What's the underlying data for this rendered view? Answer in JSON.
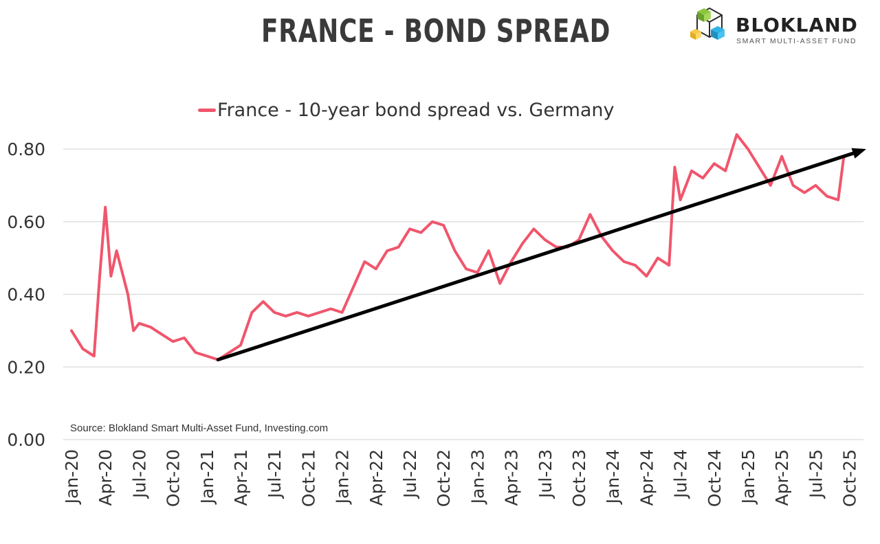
{
  "header": {
    "title": "FRANCE - BOND SPREAD"
  },
  "logo": {
    "name": "BLOKLAND",
    "tagline": "SMART MULTI-ASSET FUND",
    "icon": "cube-cluster-icon"
  },
  "chart_data": {
    "type": "line",
    "title": "FRANCE - BOND SPREAD",
    "source": "Source: Blokland Smart Multi-Asset Fund, Investing.com",
    "legend_position": "top-center",
    "grid": true,
    "ylim": [
      0.0,
      0.8
    ],
    "yticks": [
      "0.00",
      "0.20",
      "0.40",
      "0.60",
      "0.80"
    ],
    "xticks": [
      "Jan-20",
      "Apr-20",
      "Jul-20",
      "Oct-20",
      "Jan-21",
      "Apr-21",
      "Jul-21",
      "Oct-21",
      "Jan-22",
      "Apr-22",
      "Jul-22",
      "Oct-22",
      "Jan-23",
      "Apr-23",
      "Jul-23",
      "Oct-23",
      "Jan-24",
      "Apr-24",
      "Jul-24",
      "Oct-24",
      "Jan-25",
      "Apr-25",
      "Jul-25",
      "Oct-25"
    ],
    "series": [
      {
        "name": "France - 10-year bond spread vs. Germany",
        "color": "#f0566c",
        "points": [
          [
            "Jan-20",
            0.3
          ],
          [
            "Feb-20",
            0.25
          ],
          [
            "Mar-20",
            0.23
          ],
          [
            "Mar-20",
            0.45
          ],
          [
            "Apr-20",
            0.64
          ],
          [
            "Apr-20",
            0.45
          ],
          [
            "May-20",
            0.52
          ],
          [
            "Jun-20",
            0.4
          ],
          [
            "Jun-20",
            0.3
          ],
          [
            "Jul-20",
            0.32
          ],
          [
            "Aug-20",
            0.31
          ],
          [
            "Sep-20",
            0.29
          ],
          [
            "Oct-20",
            0.27
          ],
          [
            "Nov-20",
            0.28
          ],
          [
            "Dec-20",
            0.24
          ],
          [
            "Jan-21",
            0.23
          ],
          [
            "Feb-21",
            0.22
          ],
          [
            "Mar-21",
            0.24
          ],
          [
            "Apr-21",
            0.26
          ],
          [
            "May-21",
            0.35
          ],
          [
            "Jun-21",
            0.38
          ],
          [
            "Jul-21",
            0.35
          ],
          [
            "Aug-21",
            0.34
          ],
          [
            "Sep-21",
            0.35
          ],
          [
            "Oct-21",
            0.34
          ],
          [
            "Nov-21",
            0.35
          ],
          [
            "Dec-21",
            0.36
          ],
          [
            "Jan-22",
            0.35
          ],
          [
            "Feb-22",
            0.42
          ],
          [
            "Mar-22",
            0.49
          ],
          [
            "Apr-22",
            0.47
          ],
          [
            "May-22",
            0.52
          ],
          [
            "Jun-22",
            0.53
          ],
          [
            "Jul-22",
            0.58
          ],
          [
            "Aug-22",
            0.57
          ],
          [
            "Sep-22",
            0.6
          ],
          [
            "Oct-22",
            0.59
          ],
          [
            "Nov-22",
            0.52
          ],
          [
            "Dec-22",
            0.47
          ],
          [
            "Jan-23",
            0.46
          ],
          [
            "Feb-23",
            0.52
          ],
          [
            "Mar-23",
            0.43
          ],
          [
            "Apr-23",
            0.49
          ],
          [
            "May-23",
            0.54
          ],
          [
            "Jun-23",
            0.58
          ],
          [
            "Jul-23",
            0.55
          ],
          [
            "Aug-23",
            0.53
          ],
          [
            "Sep-23",
            0.53
          ],
          [
            "Oct-23",
            0.55
          ],
          [
            "Nov-23",
            0.62
          ],
          [
            "Dec-23",
            0.56
          ],
          [
            "Jan-24",
            0.52
          ],
          [
            "Feb-24",
            0.49
          ],
          [
            "Mar-24",
            0.48
          ],
          [
            "Apr-24",
            0.45
          ],
          [
            "May-24",
            0.5
          ],
          [
            "Jun-24",
            0.48
          ],
          [
            "Jun-24",
            0.75
          ],
          [
            "Jul-24",
            0.66
          ],
          [
            "Aug-24",
            0.74
          ],
          [
            "Sep-24",
            0.72
          ],
          [
            "Oct-24",
            0.76
          ],
          [
            "Nov-24",
            0.74
          ],
          [
            "Dec-24",
            0.84
          ],
          [
            "Jan-25",
            0.8
          ],
          [
            "Feb-25",
            0.75
          ],
          [
            "Mar-25",
            0.7
          ],
          [
            "Apr-25",
            0.78
          ],
          [
            "May-25",
            0.7
          ],
          [
            "Jun-25",
            0.68
          ],
          [
            "Jul-25",
            0.7
          ],
          [
            "Aug-25",
            0.67
          ],
          [
            "Sep-25",
            0.66
          ],
          [
            "Sep-25",
            0.78
          ]
        ]
      }
    ],
    "annotations": [
      {
        "type": "trend-arrow",
        "color": "#000000",
        "from": [
          "Feb-21",
          0.22
        ],
        "to": [
          "Nov-25",
          0.8
        ]
      }
    ]
  }
}
